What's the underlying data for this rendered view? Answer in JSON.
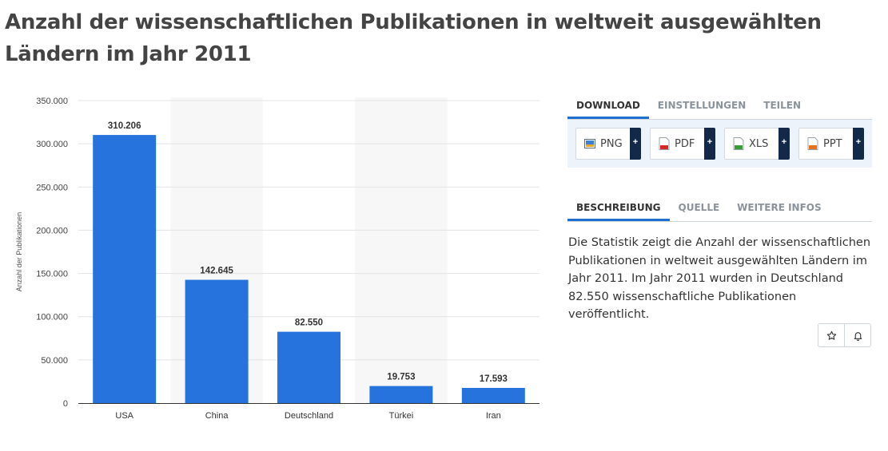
{
  "page": {
    "title": "Anzahl der wissenschaftlichen Publikationen in weltweit ausgewählten Ländern im Jahr 2011"
  },
  "download_tabs": [
    {
      "label": "DOWNLOAD",
      "active": true
    },
    {
      "label": "EINSTELLUNGEN",
      "active": false
    },
    {
      "label": "TEILEN",
      "active": false
    }
  ],
  "downloads": [
    {
      "label": "PNG",
      "icon": "png-file-icon"
    },
    {
      "label": "PDF",
      "icon": "pdf-file-icon"
    },
    {
      "label": "XLS",
      "icon": "xls-file-icon"
    },
    {
      "label": "PPT",
      "icon": "ppt-file-icon"
    }
  ],
  "plus_symbol": "+",
  "info_tabs": [
    {
      "label": "BESCHREIBUNG",
      "active": true
    },
    {
      "label": "QUELLE",
      "active": false
    },
    {
      "label": "WEITERE INFOS",
      "active": false
    }
  ],
  "description": "Die Statistik zeigt die Anzahl der wissenschaftlichen Publikationen in weltweit ausgewählten Ländern im Jahr 2011. Im Jahr 2011 wurden in Deutschland 82.550 wissenschaftliche Publikationen veröffentlicht.",
  "actions": {
    "star_icon": "star-icon",
    "bell_icon": "bell-icon"
  },
  "colors": {
    "bar": "#2673dd",
    "accent": "#1f6fd0",
    "band": "#f7f7f7"
  },
  "chart_data": {
    "type": "bar",
    "title": "",
    "xlabel": "",
    "ylabel": "Anzahl der Publikationen",
    "categories": [
      "USA",
      "China",
      "Deutschland",
      "Türkei",
      "Iran"
    ],
    "values": [
      310206,
      142645,
      82550,
      19753,
      17593
    ],
    "value_labels": [
      "310.206",
      "142.645",
      "82.550",
      "19.753",
      "17.593"
    ],
    "ylim": [
      0,
      350000
    ],
    "yticks": [
      0,
      50000,
      100000,
      150000,
      200000,
      250000,
      300000,
      350000
    ],
    "ytick_labels": [
      "0",
      "50.000",
      "100.000",
      "150.000",
      "200.000",
      "250.000",
      "300.000",
      "350.000"
    ],
    "grid": true,
    "alternating_column_bands": true,
    "legend": "none"
  }
}
